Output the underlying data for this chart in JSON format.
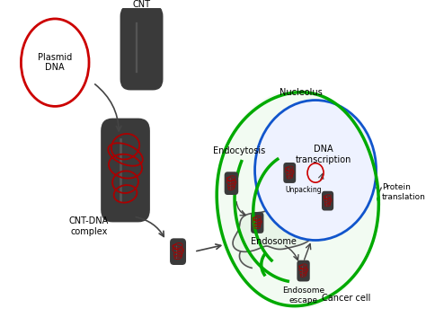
{
  "bg_color": "#ffffff",
  "fig_width": 4.74,
  "fig_height": 3.63,
  "dpi": 100,
  "labels": {
    "plasmid_dna": "Plasmid\nDNA",
    "cnt": "CNT",
    "cnt_dna_complex": "CNT-DNA\ncomplex",
    "endocytosis": "Endocytosis",
    "endosome": "Endosome",
    "endosome_escape": "Endosome\nescape",
    "nucleolus": "Nucleolus",
    "dna_transcription": "DNA\ntranscription",
    "unpacking": "Unpacking",
    "protein_translation": "Protein\ntranslation",
    "cancer_cell": "Cancer cell"
  },
  "colors": {
    "cnt_body": "#3a3a3a",
    "cnt_cap": "#2a2a2a",
    "plasmid_circle": "#cc0000",
    "dna_wrap": "#aa0000",
    "cell_outline": "#00aa00",
    "nucleus_outline": "#1155cc",
    "arrow_color": "#444444",
    "text_color": "#000000",
    "cell_fill": "#f2fbf2",
    "nucleus_fill": "#eef2ff"
  }
}
